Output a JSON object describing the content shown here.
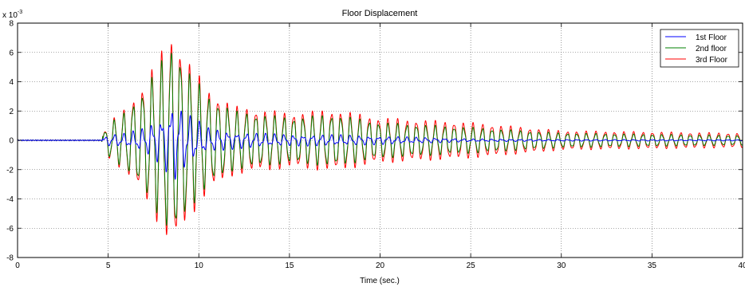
{
  "chart_data": {
    "type": "line",
    "title": "Floor Displacement",
    "xlabel": "Time (sec.)",
    "ylabel": "",
    "y_multiplier_label": "x 10",
    "y_multiplier_exponent": "-3",
    "xlim": [
      0,
      40
    ],
    "ylim": [
      -0.008,
      0.008
    ],
    "x_ticks": [
      "0",
      "5",
      "10",
      "15",
      "20",
      "25",
      "30",
      "35",
      "40"
    ],
    "y_ticks": [
      "-8",
      "-6",
      "-4",
      "-2",
      "0",
      "2",
      "4",
      "6",
      "8"
    ],
    "grid": true,
    "legend_position": "top-right",
    "series": [
      {
        "name": "1st Floor",
        "color": "#0000ff",
        "envelope": [
          [
            0,
            3e-05
          ],
          [
            4.6,
            3e-05
          ],
          [
            5,
            0.0004
          ],
          [
            6,
            0.0005
          ],
          [
            7,
            0.0009
          ],
          [
            8,
            0.0018
          ],
          [
            8.6,
            0.0029
          ],
          [
            9.5,
            0.0018
          ],
          [
            10.5,
            0.0009
          ],
          [
            12,
            0.0006
          ],
          [
            15,
            0.0004
          ],
          [
            17.5,
            0.0004
          ],
          [
            20,
            0.0003
          ],
          [
            25,
            0.0001
          ],
          [
            30,
            6e-05
          ],
          [
            40,
            4e-05
          ]
        ]
      },
      {
        "name": "2nd floor",
        "color": "#008000",
        "envelope": [
          [
            0,
            4e-05
          ],
          [
            4.6,
            4e-05
          ],
          [
            5,
            0.001
          ],
          [
            6,
            0.0018
          ],
          [
            7,
            0.0032
          ],
          [
            8,
            0.005
          ],
          [
            8.6,
            0.0062
          ],
          [
            9.5,
            0.0042
          ],
          [
            10.5,
            0.0028
          ],
          [
            12,
            0.0018
          ],
          [
            15,
            0.0014
          ],
          [
            17.5,
            0.0016
          ],
          [
            20,
            0.0011
          ],
          [
            25,
            0.0008
          ],
          [
            30,
            0.00045
          ],
          [
            40,
            0.0003
          ]
        ]
      },
      {
        "name": "3rd Floor",
        "color": "#ff0000",
        "envelope": [
          [
            0,
            4e-05
          ],
          [
            4.6,
            4e-05
          ],
          [
            5,
            0.0011
          ],
          [
            6,
            0.002
          ],
          [
            7,
            0.0036
          ],
          [
            8,
            0.0056
          ],
          [
            8.6,
            0.0068
          ],
          [
            9.5,
            0.0048
          ],
          [
            10.5,
            0.0032
          ],
          [
            12,
            0.0021
          ],
          [
            15,
            0.0017
          ],
          [
            17.5,
            0.0019
          ],
          [
            20,
            0.0014
          ],
          [
            25,
            0.0011
          ],
          [
            30,
            0.0006
          ],
          [
            40,
            0.00045
          ]
        ]
      }
    ]
  }
}
